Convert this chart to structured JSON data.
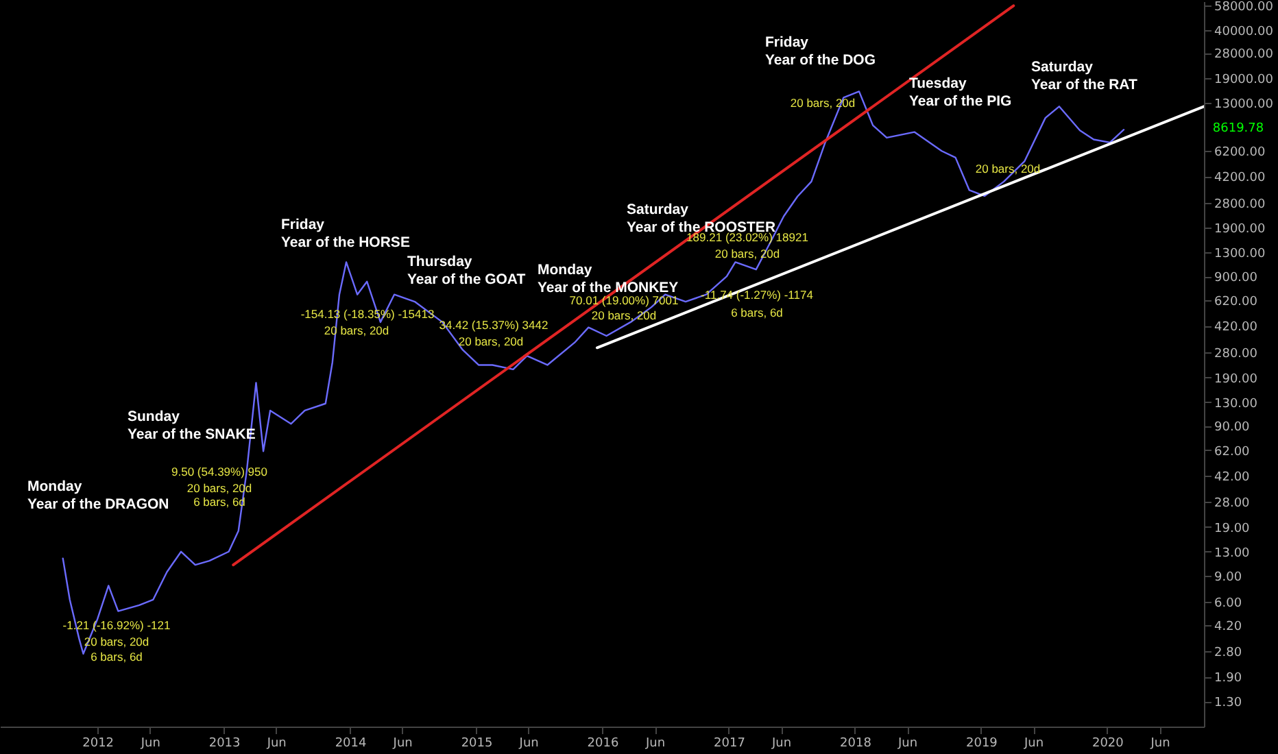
{
  "chart_data": {
    "type": "line",
    "log": "y",
    "grid": false,
    "legend": false,
    "line_style": "solid",
    "xlim": [
      "2011-03-25",
      "2020-10-07"
    ],
    "ylim": [
      0.88,
      62000
    ],
    "xticks": [
      {
        "value": "2012-01-01",
        "label": "2012"
      },
      {
        "value": "2012-06-01",
        "label": "Jun"
      },
      {
        "value": "2013-01-01",
        "label": "2013"
      },
      {
        "value": "2013-06-01",
        "label": "Jun"
      },
      {
        "value": "2014-01-01",
        "label": "2014"
      },
      {
        "value": "2014-06-01",
        "label": "Jun"
      },
      {
        "value": "2015-01-01",
        "label": "2015"
      },
      {
        "value": "2015-06-01",
        "label": "Jun"
      },
      {
        "value": "2016-01-01",
        "label": "2016"
      },
      {
        "value": "2016-06-01",
        "label": "Jun"
      },
      {
        "value": "2017-01-01",
        "label": "2017"
      },
      {
        "value": "2017-06-01",
        "label": "Jun"
      },
      {
        "value": "2018-01-01",
        "label": "2018"
      },
      {
        "value": "2018-06-01",
        "label": "Jun"
      },
      {
        "value": "2019-01-01",
        "label": "2019"
      },
      {
        "value": "2019-06-01",
        "label": "Jun"
      },
      {
        "value": "2020-01-01",
        "label": "2020"
      },
      {
        "value": "2020-06-01",
        "label": "Jun"
      }
    ],
    "yticks": [
      {
        "value": 1.3,
        "label": "1.30"
      },
      {
        "value": 1.9,
        "label": "1.90"
      },
      {
        "value": 2.8,
        "label": "2.80"
      },
      {
        "value": 4.2,
        "label": "4.20"
      },
      {
        "value": 6,
        "label": "6.00"
      },
      {
        "value": 9,
        "label": "9.00"
      },
      {
        "value": 13,
        "label": "13.00"
      },
      {
        "value": 19,
        "label": "19.00"
      },
      {
        "value": 28,
        "label": "28.00"
      },
      {
        "value": 42,
        "label": "42.00"
      },
      {
        "value": 62,
        "label": "62.00"
      },
      {
        "value": 90,
        "label": "90.00"
      },
      {
        "value": 130,
        "label": "130.00"
      },
      {
        "value": 190,
        "label": "190.00"
      },
      {
        "value": 280,
        "label": "280.00"
      },
      {
        "value": 420,
        "label": "420.00"
      },
      {
        "value": 620,
        "label": "620.00"
      },
      {
        "value": 900,
        "label": "900.00"
      },
      {
        "value": 1300,
        "label": "1300.00"
      },
      {
        "value": 1900,
        "label": "1900.00"
      },
      {
        "value": 2800,
        "label": "2800.00"
      },
      {
        "value": 4200,
        "label": "4200.00"
      },
      {
        "value": 6200,
        "label": "6200.00"
      },
      {
        "value": 13000,
        "label": "13000.00"
      },
      {
        "value": 19000,
        "label": "19000.00"
      },
      {
        "value": 28000,
        "label": "28000.00"
      },
      {
        "value": 40000,
        "label": "40000.00"
      },
      {
        "value": 58000,
        "label": "58000.00"
      }
    ],
    "series": [
      {
        "color": "#6b6bff",
        "x": [
          "2011-09-23",
          "2011-10-13",
          "2011-11-09",
          "2011-11-21",
          "2012-01-01",
          "2012-02-02",
          "2012-03-01",
          "2012-05-01",
          "2012-06-10",
          "2012-07-20",
          "2012-08-30",
          "2012-10-10",
          "2012-11-20",
          "2013-01-15",
          "2013-02-12",
          "2013-03-08",
          "2013-04-04",
          "2013-04-25",
          "2013-05-15",
          "2013-07-14",
          "2013-08-23",
          "2013-10-22",
          "2013-11-11",
          "2013-12-01",
          "2013-12-21",
          "2014-01-22",
          "2014-02-19",
          "2014-03-30",
          "2014-05-09",
          "2014-07-07",
          "2014-09-25",
          "2014-11-23",
          "2015-01-08",
          "2015-02-17",
          "2015-04-18",
          "2015-05-28",
          "2015-07-26",
          "2015-10-13",
          "2015-11-22",
          "2016-01-13",
          "2016-03-23",
          "2016-05-22",
          "2016-07-01",
          "2016-08-29",
          "2016-10-28",
          "2016-12-26",
          "2017-01-20",
          "2017-03-21",
          "2017-04-30",
          "2017-06-09",
          "2017-07-19",
          "2017-08-28",
          "2017-10-07",
          "2017-11-29",
          "2018-01-13",
          "2018-02-22",
          "2018-04-03",
          "2018-06-22",
          "2018-09-09",
          "2018-10-19",
          "2018-11-28",
          "2019-01-11",
          "2019-03-08",
          "2019-05-07",
          "2019-07-06",
          "2019-08-15",
          "2019-10-14",
          "2019-11-23",
          "2020-01-09",
          "2020-02-18"
        ],
        "values": [
          11.7,
          6.2,
          3.4,
          2.7,
          4.6,
          7.7,
          5.2,
          5.7,
          6.2,
          9.5,
          13,
          10.6,
          11.3,
          13,
          17.9,
          45,
          175,
          61,
          114,
          93,
          114,
          127,
          240,
          680,
          1120,
          680,
          830,
          445,
          680,
          610,
          445,
          290,
          230,
          230,
          215,
          265,
          230,
          325,
          410,
          360,
          445,
          560,
          680,
          610,
          680,
          900,
          1120,
          1000,
          1500,
          2270,
          3080,
          3870,
          7060,
          14100,
          15500,
          9200,
          7600,
          8300,
          6200,
          5600,
          3390,
          3100,
          3870,
          5300,
          10300,
          12300,
          8500,
          7400,
          7060,
          8600
        ]
      },
      {
        "type": "line",
        "color": "#e02424",
        "x": [
          "2013-01-28",
          "2019-04-05"
        ],
        "values": [
          10.6,
          58000
        ]
      },
      {
        "type": "line",
        "color": "#ffffff",
        "x": [
          "2015-12-17",
          "2020-10-07"
        ],
        "values": [
          300,
          12300
        ]
      }
    ],
    "annotations": [
      "Monday\nYear of the DRAGON",
      "Sunday\nYear of the SNAKE",
      "Friday\nYear of the HORSE",
      "Thursday\nYear of the GOAT",
      "Monday\nYear of the MONKEY",
      "Saturday\nYear of the ROOSTER",
      "Friday\nYear of the DOG",
      "Tuesday\nYear of the PIG",
      "Saturday\nYear of the RAT",
      "-1.21 (-16.92%) -121",
      "20 bars, 20d",
      "6 bars, 6d",
      "9.50 (54.39%) 950",
      "20 bars, 20d",
      "6 bars, 6d",
      "-154.13 (-18.35%) -15413",
      "20 bars, 20d",
      "34.42 (15.37%) 3442",
      "20 bars, 20d",
      "70.01 (19.00%) 7001",
      "20 bars, 20d",
      "189.21 (23.02%) 18921",
      "20 bars, 20d",
      "-11.74 (-1.27%) -1174",
      "6 bars, 6d",
      "20 bars, 20d",
      "20 bars, 20d",
      "8619.78"
    ]
  }
}
